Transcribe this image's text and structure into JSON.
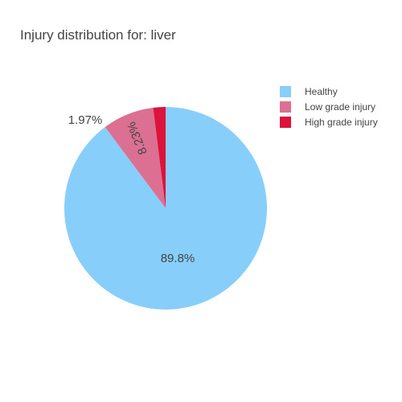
{
  "chart_data": {
    "type": "pie",
    "title": "Injury distribution for: liver",
    "slices": [
      {
        "label": "Healthy",
        "value": 89.8,
        "text": "89.8%",
        "color": "#87CEFA"
      },
      {
        "label": "Low grade injury",
        "value": 8.23,
        "text": "8.23%",
        "color": "#DB7093"
      },
      {
        "label": "High grade injury",
        "value": 1.97,
        "text": "1.97%",
        "color": "#DC143C"
      }
    ],
    "direction": "clockwise",
    "start_angle": "top",
    "legend": "top-right"
  }
}
